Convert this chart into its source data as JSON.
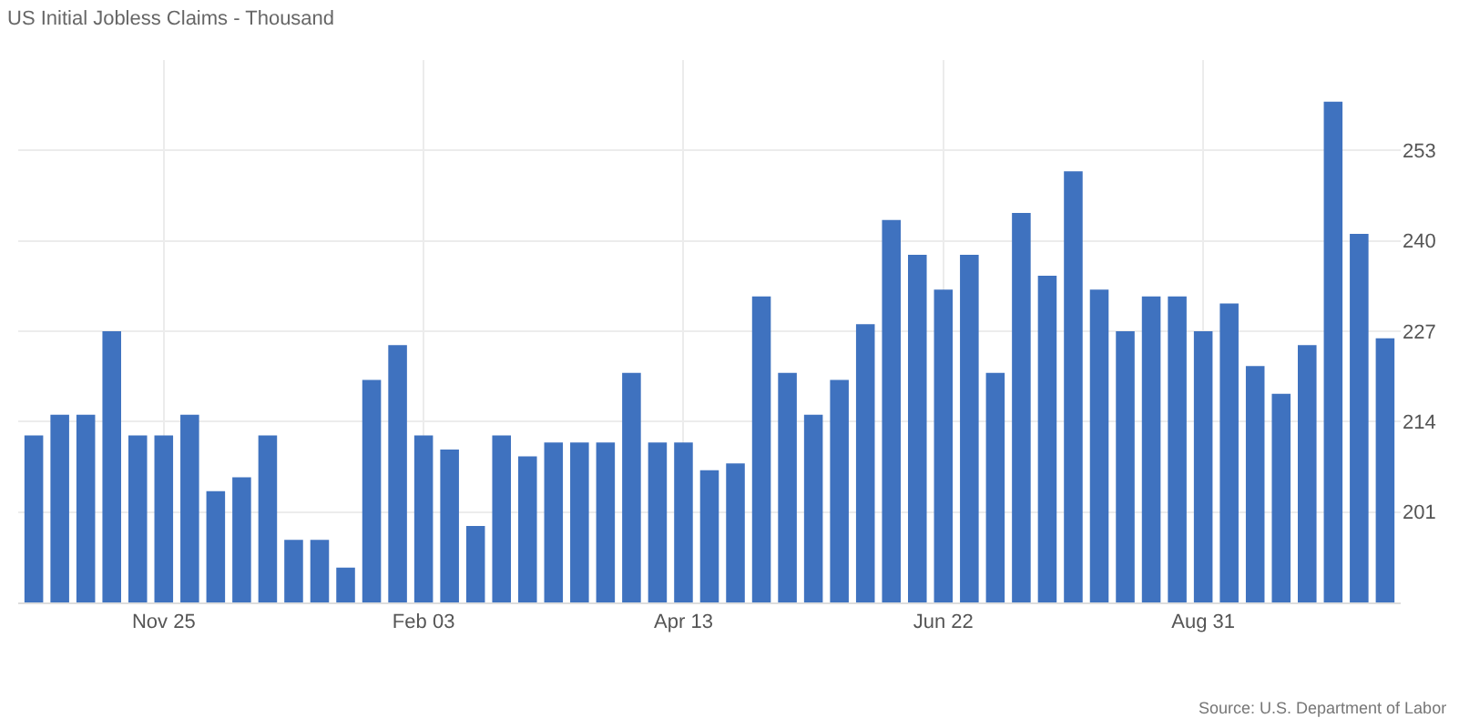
{
  "chart_data": {
    "type": "bar",
    "title": "US Initial Jobless Claims - Thousand",
    "categories": [
      null,
      null,
      null,
      null,
      null,
      "Nov 25",
      null,
      null,
      null,
      null,
      null,
      null,
      null,
      null,
      null,
      "Feb 03",
      null,
      null,
      null,
      null,
      null,
      null,
      null,
      null,
      null,
      "Apr 13",
      null,
      null,
      null,
      null,
      null,
      null,
      null,
      null,
      null,
      "Jun 22",
      null,
      null,
      null,
      null,
      null,
      null,
      null,
      null,
      null,
      "Aug 31",
      null,
      null,
      null,
      null,
      null,
      null,
      null
    ],
    "series": [
      {
        "color": "#3f72bf",
        "values": [
          212,
          215,
          215,
          227,
          212,
          212,
          215,
          204,
          206,
          212,
          197,
          197,
          193,
          220,
          225,
          212,
          210,
          199,
          212,
          209,
          211,
          211,
          211,
          221,
          211,
          211,
          207,
          208,
          232,
          221,
          215,
          220,
          228,
          243,
          238,
          233,
          238,
          221,
          244,
          235,
          250,
          233,
          227,
          232,
          232,
          227,
          231,
          222,
          218,
          225,
          260,
          241,
          226
        ]
      }
    ],
    "ylim": [
      188,
      266
    ],
    "yticks": [
      201,
      214,
      227,
      240,
      253
    ],
    "grid": true,
    "legend": false,
    "annotations": [
      "Source: U.S. Department of Labor"
    ]
  }
}
